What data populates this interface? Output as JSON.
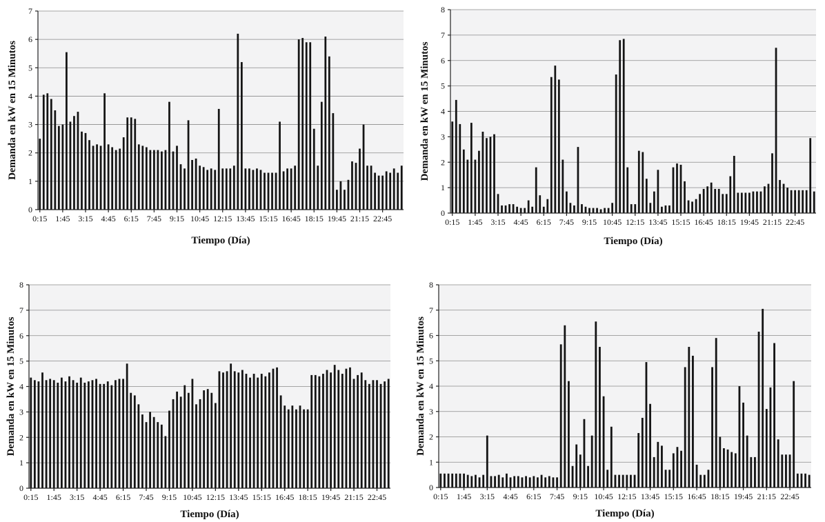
{
  "chart_data": [
    {
      "type": "bar",
      "xlabel": "Tiempo (Día)",
      "ylabel": "Demanda en kW en 15 Minutos",
      "ylim": [
        0,
        7
      ],
      "yticks": [
        0,
        1,
        2,
        3,
        4,
        5,
        6,
        7
      ],
      "tick_labels": [
        "0:15",
        "1:45",
        "3:15",
        "4:45",
        "6:15",
        "7:45",
        "9:15",
        "10:45",
        "12:15",
        "13:45",
        "15:15",
        "16:45",
        "18:15",
        "19:45",
        "21:15",
        "22:45"
      ],
      "grid": true,
      "values": [
        2.5,
        4.05,
        4.1,
        3.9,
        3.5,
        2.95,
        3.0,
        5.55,
        3.1,
        3.3,
        3.45,
        2.75,
        2.7,
        2.45,
        2.25,
        2.3,
        2.25,
        4.1,
        2.3,
        2.2,
        2.1,
        2.15,
        2.55,
        3.25,
        3.25,
        3.2,
        2.3,
        2.25,
        2.2,
        2.1,
        2.1,
        2.1,
        2.05,
        2.1,
        3.8,
        2.05,
        2.25,
        1.6,
        1.45,
        3.15,
        1.75,
        1.8,
        1.55,
        1.5,
        1.4,
        1.45,
        1.4,
        3.55,
        1.45,
        1.45,
        1.45,
        1.55,
        6.2,
        5.2,
        1.45,
        1.45,
        1.4,
        1.45,
        1.4,
        1.3,
        1.3,
        1.3,
        1.3,
        3.1,
        1.35,
        1.45,
        1.45,
        1.55,
        6.0,
        6.05,
        5.9,
        5.9,
        2.85,
        1.55,
        3.8,
        6.1,
        5.4,
        3.4,
        0.7,
        1.0,
        0.7,
        1.05,
        1.7,
        1.65,
        2.15,
        3.0,
        1.55,
        1.55,
        1.3,
        1.2,
        1.2,
        1.35,
        1.3,
        1.45,
        1.3,
        1.55
      ]
    },
    {
      "type": "bar",
      "xlabel": "Tiempo (Día)",
      "ylabel": "Demanda en kW en 15 Minutos",
      "ylim": [
        0,
        8
      ],
      "yticks": [
        0,
        1,
        2,
        3,
        4,
        5,
        6,
        7,
        8
      ],
      "tick_labels": [
        "0:15",
        "1:45",
        "3:15",
        "4:45",
        "6:15",
        "7:45",
        "9:15",
        "10:45",
        "12:15",
        "13:45",
        "15:15",
        "16:45",
        "18:15",
        "19:45",
        "21:15",
        "22:45"
      ],
      "grid": true,
      "values": [
        3.6,
        4.45,
        3.5,
        2.5,
        2.1,
        3.55,
        2.1,
        2.45,
        3.2,
        2.95,
        3.0,
        3.1,
        0.75,
        0.3,
        0.3,
        0.35,
        0.35,
        0.25,
        0.2,
        0.2,
        0.5,
        0.25,
        1.8,
        0.7,
        0.25,
        0.55,
        5.35,
        5.8,
        5.25,
        2.1,
        0.85,
        0.4,
        0.3,
        2.6,
        0.35,
        0.25,
        0.2,
        0.2,
        0.2,
        0.15,
        0.2,
        0.2,
        0.4,
        5.45,
        6.8,
        6.85,
        1.8,
        0.35,
        0.35,
        2.45,
        2.4,
        1.35,
        0.4,
        0.85,
        1.7,
        0.25,
        0.3,
        0.3,
        1.8,
        1.95,
        1.9,
        1.25,
        0.5,
        0.45,
        0.55,
        0.75,
        0.95,
        1.05,
        1.2,
        0.95,
        0.95,
        0.75,
        0.75,
        1.45,
        2.25,
        0.8,
        0.8,
        0.8,
        0.8,
        0.85,
        0.85,
        0.85,
        1.05,
        1.15,
        2.35,
        6.5,
        1.3,
        1.15,
        1.0,
        0.9,
        0.9,
        0.9,
        0.9,
        0.9,
        2.95,
        0.85
      ]
    },
    {
      "type": "bar",
      "xlabel": "Tiempo (Día)",
      "ylabel": "Demanda en kW en 15 Minutos",
      "ylim": [
        0,
        8
      ],
      "yticks": [
        0,
        1,
        2,
        3,
        4,
        5,
        6,
        7,
        8
      ],
      "tick_labels": [
        "0:15",
        "1:45",
        "3:15",
        "4:45",
        "6:15",
        "7:45",
        "9:15",
        "10:45",
        "12:15",
        "13:45",
        "15:15",
        "16:45",
        "18:15",
        "19:45",
        "21:15",
        "22:45"
      ],
      "grid": true,
      "values": [
        4.35,
        4.25,
        4.2,
        4.55,
        4.25,
        4.3,
        4.25,
        4.15,
        4.35,
        4.2,
        4.4,
        4.25,
        4.15,
        4.35,
        4.15,
        4.2,
        4.25,
        4.3,
        4.1,
        4.1,
        4.2,
        4.05,
        4.25,
        4.3,
        4.3,
        4.9,
        3.75,
        3.65,
        3.3,
        2.9,
        2.6,
        3.0,
        2.8,
        2.6,
        2.5,
        2.05,
        3.05,
        3.5,
        3.8,
        3.6,
        4.05,
        3.75,
        4.3,
        3.3,
        3.5,
        3.85,
        3.9,
        3.75,
        3.35,
        4.6,
        4.55,
        4.6,
        4.9,
        4.6,
        4.55,
        4.65,
        4.5,
        4.35,
        4.5,
        4.35,
        4.5,
        4.4,
        4.55,
        4.7,
        4.75,
        3.65,
        3.25,
        3.1,
        3.25,
        3.1,
        3.25,
        3.1,
        3.1,
        4.45,
        4.45,
        4.4,
        4.5,
        4.65,
        4.55,
        4.85,
        4.65,
        4.5,
        4.7,
        4.75,
        4.3,
        4.45,
        4.55,
        4.25,
        4.1,
        4.25,
        4.25,
        4.1,
        4.2,
        4.3
      ]
    },
    {
      "type": "bar",
      "xlabel": "Tiempo (Día)",
      "ylabel": "Demanda en kW en 15 Minutos",
      "ylim": [
        0,
        8
      ],
      "yticks": [
        0,
        1,
        2,
        3,
        4,
        5,
        6,
        7,
        8
      ],
      "tick_labels": [
        "0:15",
        "1:45",
        "3:15",
        "4:45",
        "6:15",
        "7:45",
        "9:15",
        "10:45",
        "12:15",
        "13:45",
        "15:15",
        "16:45",
        "18:15",
        "19:45",
        "21:15",
        "22:45"
      ],
      "grid": true,
      "values": [
        0.55,
        0.55,
        0.55,
        0.55,
        0.55,
        0.55,
        0.55,
        0.5,
        0.45,
        0.5,
        0.4,
        0.5,
        2.05,
        0.45,
        0.45,
        0.5,
        0.4,
        0.55,
        0.4,
        0.45,
        0.45,
        0.4,
        0.45,
        0.4,
        0.45,
        0.4,
        0.5,
        0.4,
        0.45,
        0.4,
        0.4,
        5.65,
        6.4,
        4.2,
        0.85,
        1.7,
        1.3,
        2.7,
        0.85,
        2.05,
        6.55,
        5.55,
        3.6,
        0.7,
        2.4,
        0.5,
        0.5,
        0.5,
        0.5,
        0.5,
        0.5,
        2.15,
        2.75,
        4.95,
        3.3,
        1.2,
        1.8,
        1.65,
        0.7,
        0.7,
        1.35,
        1.6,
        1.45,
        4.75,
        5.55,
        5.2,
        0.9,
        0.5,
        0.5,
        0.7,
        4.75,
        5.9,
        2.0,
        1.55,
        1.5,
        1.4,
        1.35,
        4.0,
        3.35,
        2.05,
        1.2,
        1.2,
        6.15,
        7.05,
        3.1,
        3.95,
        5.7,
        1.9,
        1.3,
        1.3,
        1.3,
        4.2,
        0.55,
        0.55,
        0.55,
        0.5
      ]
    }
  ]
}
